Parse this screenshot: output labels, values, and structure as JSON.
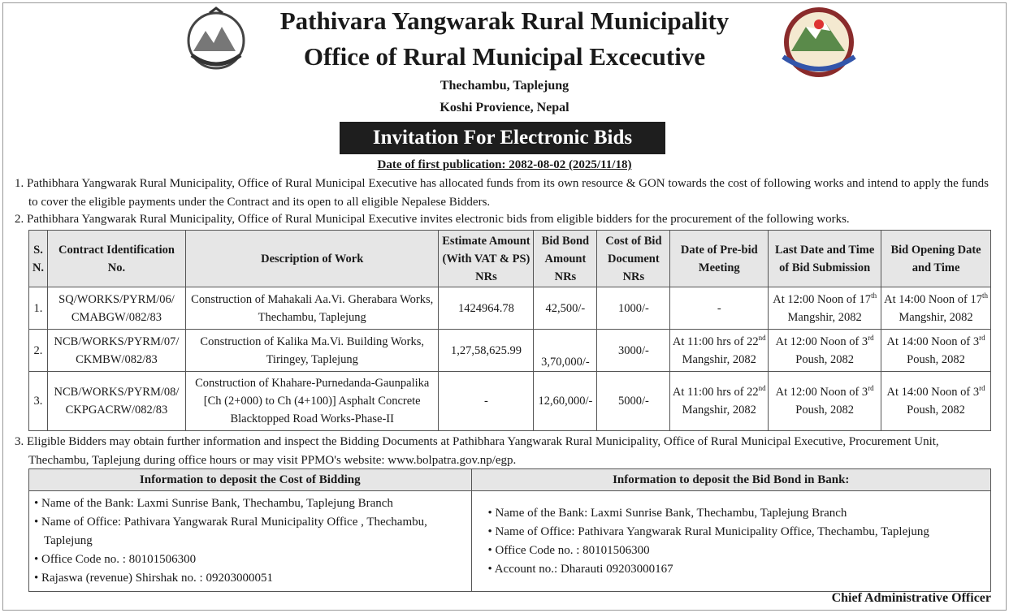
{
  "header": {
    "title": "Pathivara Yangwarak Rural Municipality",
    "office": "Office of Rural Municipal Excecutive",
    "address1": "Thechambu, Taplejung",
    "address2": "Koshi Provience, Nepal",
    "banner": "Invitation For Electronic Bids",
    "publication": "Date of first publication: 2082-08-02 (2025/11/18)",
    "colors": {
      "banner_bg": "#1e1e1e",
      "header_bg": "#e6e6e6"
    }
  },
  "paragraphs": {
    "p1": "1. Pathibhara Yangwarak Rural Municipality, Office of Rural Municipal Executive has allocated funds from its own resource & GON towards the cost of following works and intend to apply the funds to cover the eligible payments under the Contract and its open to all eligible Nepalese Bidders.",
    "p2": "2. Pathibhara Yangwarak Rural Municipality, Office of Rural Municipal Executive invites electronic bids from eligible bidders for the procurement of the following works.",
    "p3": "3. Eligible Bidders may obtain further information and inspect the Bidding Documents at Pathibhara Yangwarak Rural Municipality, Office of Rural Municipal Executive, Procurement Unit, Thechambu, Taplejung during office hours or may visit PPMO's website: www.bolpatra.gov.np/egp."
  },
  "table": {
    "headers": [
      "S. N.",
      "Contract Identification No.",
      "Description of Work",
      "Estimate Amount (With VAT & PS) NRs",
      "Bid Bond Amount NRs",
      "Cost of Bid Document NRs",
      "Date of  Pre-bid Meeting",
      "Last Date and Time of  Bid Submission",
      "Bid Opening Date and Time"
    ],
    "rows": [
      {
        "sn": "1.",
        "id": "SQ/WORKS/PYRM/06/ CMABGW/082/83",
        "desc": "Construction of Mahakali Aa.Vi. Gherabara Works, Thechambu, Taplejung",
        "estimate": "1424964.78",
        "bond": "42,500/-",
        "cost": "1000/-",
        "prebid_a": "-",
        "prebid_sup": "",
        "prebid_b": "",
        "submit_a": "At 12:00 Noon of 17",
        "submit_sup": "th",
        "submit_b": "Mangshir, 2082",
        "open_a": "At 14:00 Noon of 17",
        "open_sup": "th",
        "open_b": "Mangshir, 2082"
      },
      {
        "sn": "2.",
        "id": "NCB/WORKS/PYRM/07/ CKMBW/082/83",
        "desc": "Construction of Kalika Ma.Vi. Building Works, Tiringey, Taplejung",
        "estimate": "1,27,58,625.99",
        "bond": "3,70,000/-",
        "cost": "3000/-",
        "prebid_a": "At 11:00 hrs of 22",
        "prebid_sup": "nd",
        "prebid_b": "Mangshir, 2082",
        "submit_a": "At 12:00 Noon of 3",
        "submit_sup": "rd",
        "submit_b": "Poush, 2082",
        "open_a": "At 14:00 Noon of 3",
        "open_sup": "rd",
        "open_b": "Poush, 2082"
      },
      {
        "sn": "3.",
        "id": "NCB/WORKS/PYRM/08/ CKPGACRW/082/83",
        "desc": "Construction of Khahare-Purnedanda-Gaunpalika [Ch (2+000) to Ch (4+100)] Asphalt Concrete Blacktopped Road Works-Phase-II",
        "estimate": "-",
        "bond": "12,60,000/-",
        "cost": "5000/-",
        "prebid_a": "At 11:00 hrs of 22",
        "prebid_sup": "nd",
        "prebid_b": "Mangshir, 2082",
        "submit_a": "At 12:00 Noon of 3",
        "submit_sup": "rd",
        "submit_b": "Poush, 2082",
        "open_a": "At 14:00 Noon of 3",
        "open_sup": "rd",
        "open_b": "Poush, 2082"
      }
    ]
  },
  "deposit": {
    "left_title": "Information to deposit the Cost of Bidding",
    "left_items": [
      "Name of the Bank: Laxmi Sunrise Bank, Thechambu, Taplejung Branch",
      "Name of Office: Pathivara Yangwarak Rural Municipality Office , Thechambu, Taplejung",
      "Office Code no. : 80101506300",
      "Rajaswa (revenue) Shirshak no. : 09203000051"
    ],
    "right_title": "Information to deposit the Bid Bond in Bank:",
    "right_items": [
      "Name of the Bank: Laxmi Sunrise Bank, Thechambu, Taplejung Branch",
      "Name of Office: Pathivara Yangwarak Rural Municipality Office, Thechambu, Taplejung",
      "Office Code no. : 80101506300",
      "Account no.: Dharauti 09203000167"
    ]
  },
  "signature": "Chief Administrative Officer"
}
